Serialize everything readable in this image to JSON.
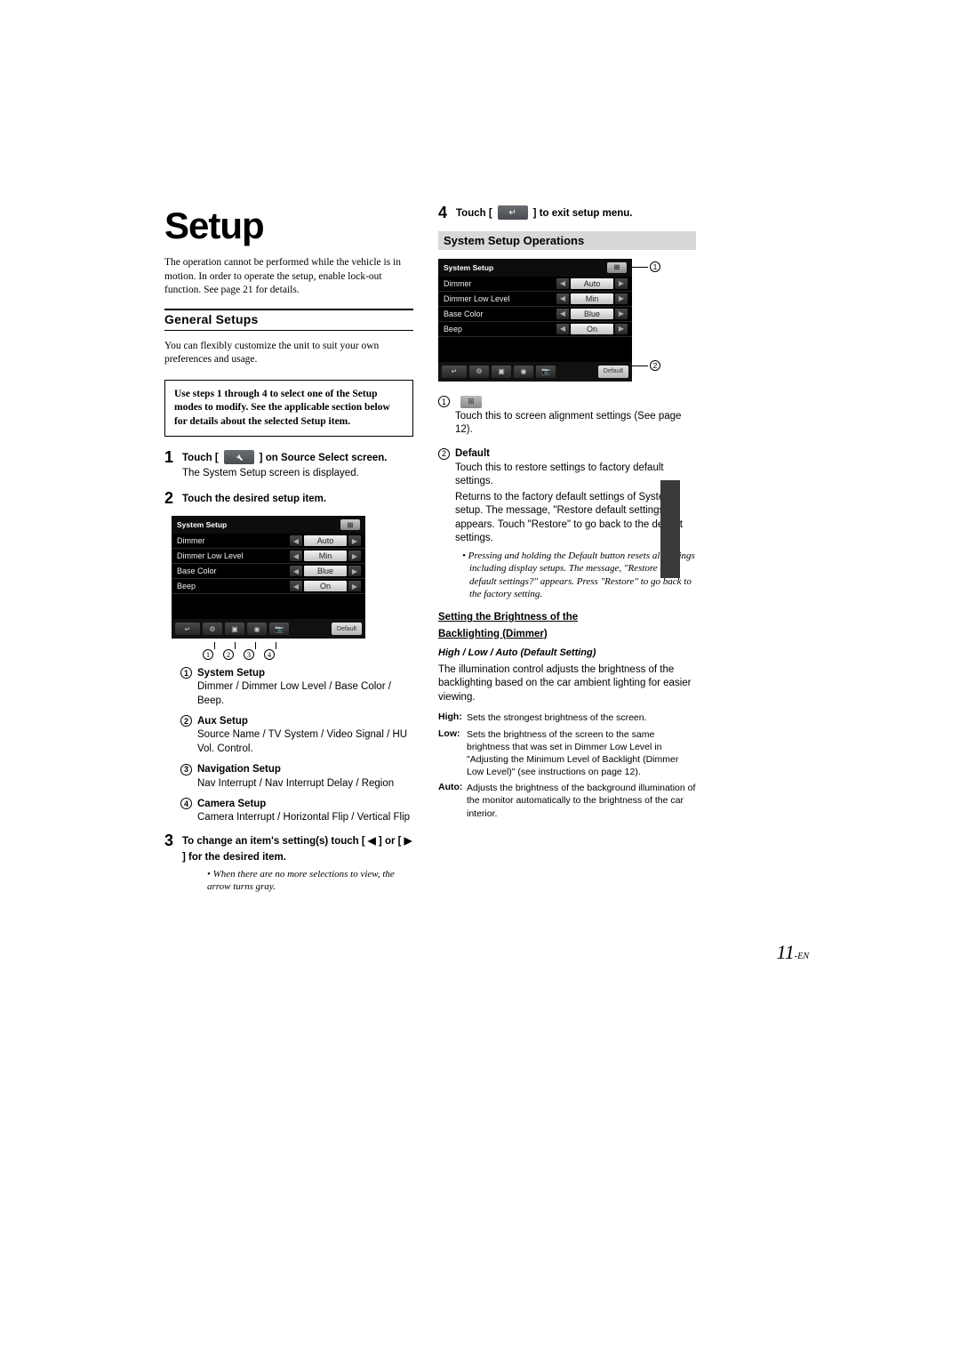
{
  "page": {
    "number": "11",
    "suffix": "-EN"
  },
  "title": "Setup",
  "intro": "The operation cannot be performed while the vehicle is in motion. In order to operate the setup, enable lock-out function. See page 21 for details.",
  "general_setups": {
    "heading": "General Setups",
    "intro": "You can flexibly customize the unit to suit your own preferences and usage.",
    "boxed": "Use steps 1 through 4 to select one of the Setup modes to modify. See the applicable section below for details about the selected Setup item."
  },
  "steps": {
    "s1": {
      "pre": "Touch [",
      "post": "] on Source Select screen.",
      "desc": "The System Setup screen is displayed."
    },
    "s2": {
      "title": "Touch the desired setup item."
    },
    "s3": {
      "title": "To change an item's setting(s) touch [ ◀ ] or [ ▶ ] for the desired item.",
      "note": "• When there are no more selections to view, the arrow turns gray."
    },
    "s4": {
      "pre": "Touch [",
      "post": "] to exit setup menu."
    }
  },
  "screenshot": {
    "title": "System Setup",
    "rows": [
      {
        "label": "Dimmer",
        "value": "Auto"
      },
      {
        "label": "Dimmer Low Level",
        "value": "Min"
      },
      {
        "label": "Base Color",
        "value": "Blue"
      },
      {
        "label": "Beep",
        "value": "On"
      }
    ],
    "default_btn": "Default"
  },
  "setup_items": [
    {
      "n": "1",
      "title": "System Setup",
      "desc": "Dimmer / Dimmer Low Level / Base Color / Beep."
    },
    {
      "n": "2",
      "title": "Aux Setup",
      "desc": "Source Name / TV System / Video Signal / HU Vol. Control."
    },
    {
      "n": "3",
      "title": "Navigation Setup",
      "desc": "Nav Interrupt / Nav Interrupt Delay / Region"
    },
    {
      "n": "4",
      "title": "Camera Setup",
      "desc": "Camera Interrupt / Horizontal Flip / Vertical Flip"
    }
  ],
  "system_ops": {
    "heading": "System Setup Operations",
    "c1": {
      "desc": "Touch this to screen alignment settings (See page 12)."
    },
    "c2": {
      "title": "Default",
      "desc1": "Touch this to restore settings to factory default settings.",
      "desc2": "Returns to the factory default settings of System setup. The message, \"Restore default settings?\" appears. Touch \"Restore\" to go back to the default settings.",
      "note": "• Pressing and holding the Default button resets all settings including display setups. The message, \"Restore all default settings?\" appears. Press \"Restore\" to go back to the factory setting."
    },
    "brightness": {
      "heading1": "Setting the Brightness of the",
      "heading2": "Backlighting (Dimmer)",
      "sub": "High / Low / Auto (Default Setting)",
      "intro": "The illumination control adjusts the brightness of the backlighting based on the car ambient lighting for easier viewing.",
      "defs": [
        {
          "term": "High:",
          "body": "Sets the strongest brightness of the screen."
        },
        {
          "term": "Low:",
          "body": "Sets the brightness of the screen to the same brightness that was set in Dimmer Low Level in \"Adjusting the Minimum Level of Backlight (Dimmer Low Level)\" (see instructions on page 12)."
        },
        {
          "term": "Auto:",
          "body": "Adjusts the brightness of the background illumination of the monitor automatically to the brightness of the car interior."
        }
      ]
    }
  }
}
